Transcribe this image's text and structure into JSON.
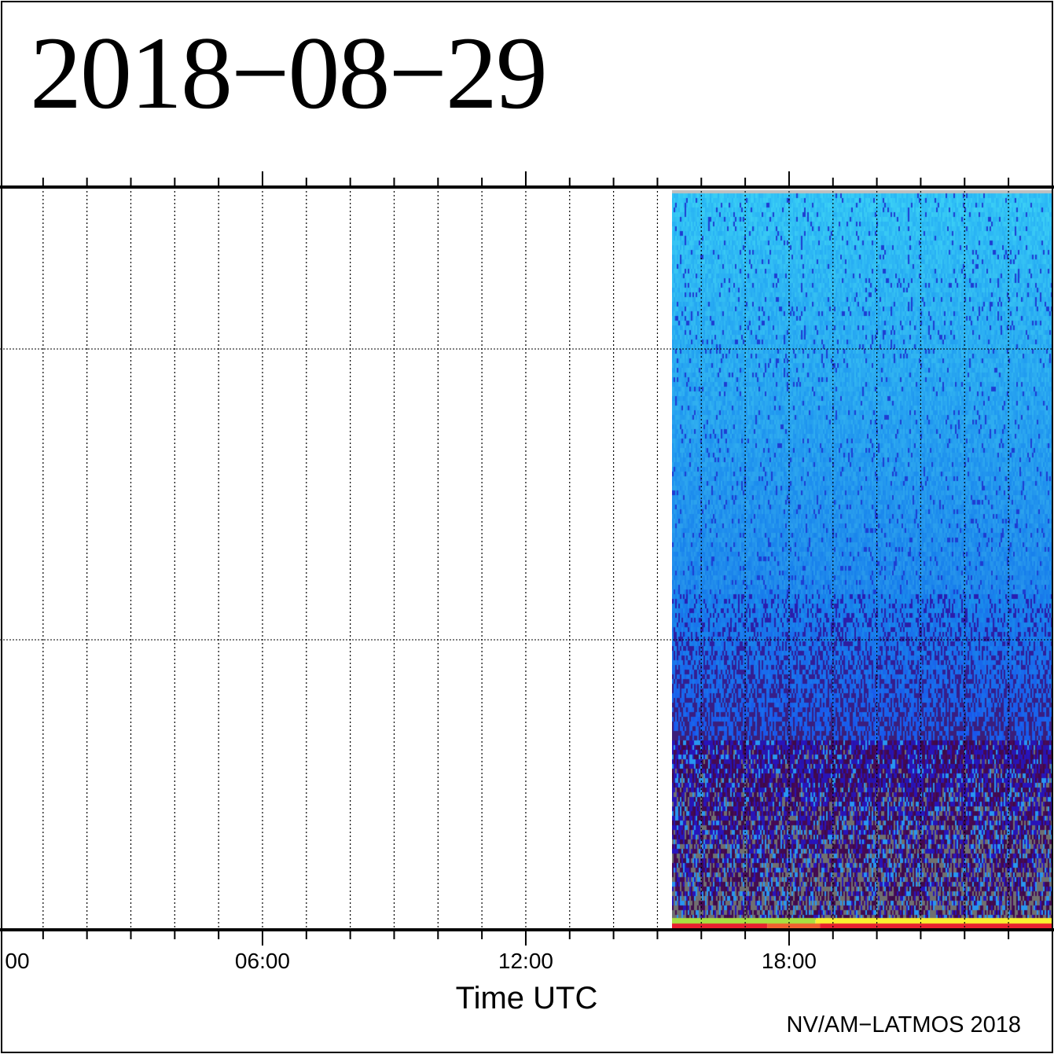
{
  "chart_data": {
    "type": "heatmap",
    "title": "2018-08-29",
    "xlabel": "Time UTC",
    "x_unit": "hours UTC",
    "xlim": [
      0,
      24
    ],
    "x_ticks": [
      {
        "hour": 0,
        "label": "00"
      },
      {
        "hour": 6,
        "label": "06:00"
      },
      {
        "hour": 12,
        "label": "12:00"
      },
      {
        "hour": 18,
        "label": "18:00"
      }
    ],
    "minor_tick_interval_hours": 1,
    "grid": true,
    "horizontal_grid_lines": 2,
    "data_start_hour": 15.33,
    "data_end_hour": 24,
    "colormap_dominant": [
      "#30b8f8",
      "#1f8ef0",
      "#1d5ae0",
      "#2a1aa0",
      "#3a0a4a",
      "#707070"
    ],
    "status_bands": [
      {
        "color": "#a8e040",
        "from_hour": 15.33,
        "to_hour": 18.6
      },
      {
        "color": "#f8f030",
        "from_hour": 18.6,
        "to_hour": 24
      },
      {
        "color": "#e82030",
        "from_hour": 15.33,
        "to_hour": 17.5
      },
      {
        "color": "#f06030",
        "from_hour": 17.5,
        "to_hour": 18.7
      },
      {
        "color": "#e82030",
        "from_hour": 18.7,
        "to_hour": 24
      }
    ],
    "credit": "NV/AM−LATMOS 2018"
  },
  "title": "2018−08−29"
}
